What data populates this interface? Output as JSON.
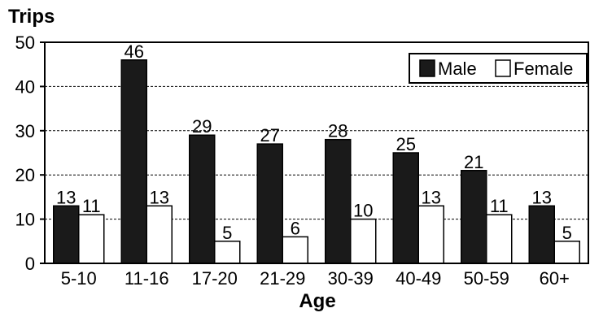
{
  "chart_data": {
    "type": "bar",
    "title": "",
    "ylabel": "Trips",
    "xlabel": "Age",
    "ylim": [
      0,
      50
    ],
    "yticks": [
      0,
      10,
      20,
      30,
      40,
      50
    ],
    "grid": true,
    "legend_position": "top-right",
    "categories": [
      "5-10",
      "11-16",
      "17-20",
      "21-29",
      "30-39",
      "40-49",
      "50-59",
      "60+"
    ],
    "series": [
      {
        "name": "Male",
        "color": "#1a1a1a",
        "values": [
          13,
          46,
          29,
          27,
          28,
          25,
          21,
          13
        ]
      },
      {
        "name": "Female",
        "color": "#ffffff",
        "values": [
          11,
          13,
          5,
          6,
          10,
          13,
          11,
          5
        ]
      }
    ]
  }
}
